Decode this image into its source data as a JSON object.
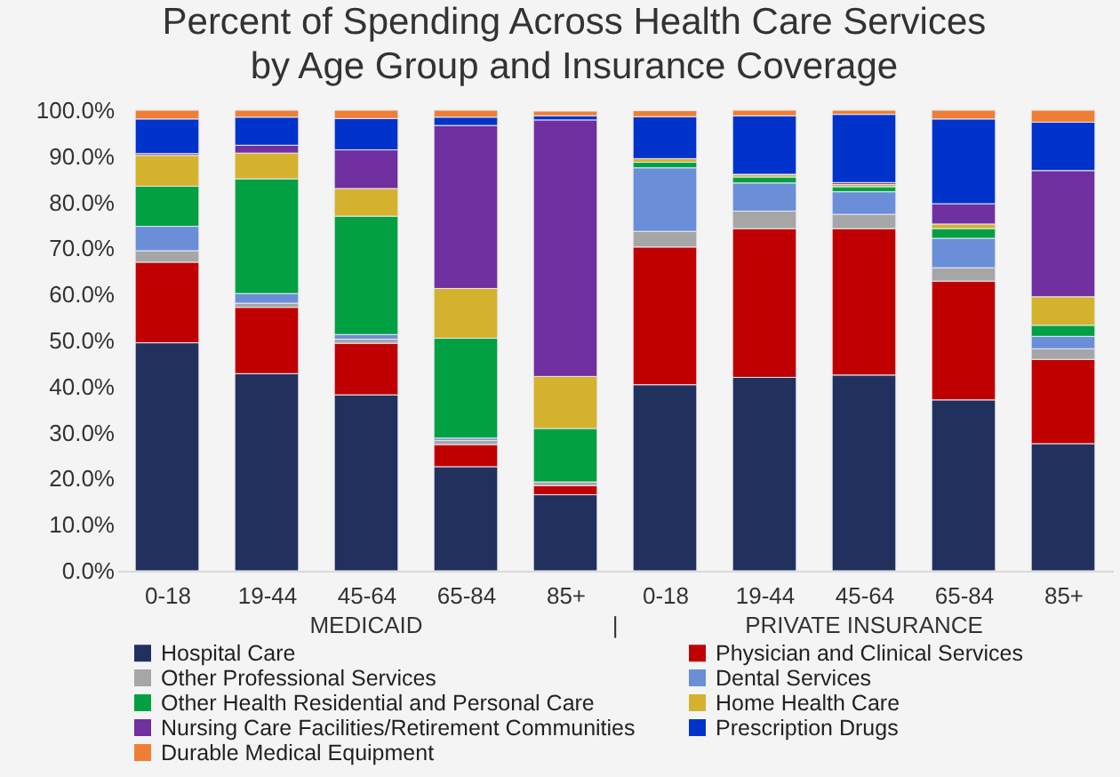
{
  "chart_data": {
    "type": "bar",
    "stacked": true,
    "title": "Percent of Spending Across Health Care Services\nby Age Group and Insurance Coverage",
    "categories": [
      "0-18",
      "19-44",
      "45-64",
      "65-84",
      "85+",
      "0-18",
      "19-44",
      "45-64",
      "65-84",
      "85+"
    ],
    "series": [
      {
        "name": "Hospital Care",
        "color": "#22305e",
        "values": [
          49.5,
          42.8,
          38.2,
          22.6,
          16.5,
          40.4,
          42.0,
          42.5,
          37.1,
          27.6
        ]
      },
      {
        "name": "Physician and Clinical Services",
        "color": "#c00000",
        "values": [
          17.5,
          14.4,
          11.2,
          4.8,
          2.0,
          29.9,
          32.3,
          31.8,
          25.8,
          18.3
        ]
      },
      {
        "name": "Other Professional Services",
        "color": "#a6a6a6",
        "values": [
          2.5,
          0.9,
          0.9,
          0.9,
          0.8,
          3.4,
          3.8,
          3.1,
          2.9,
          2.3
        ]
      },
      {
        "name": "Dental Services",
        "color": "#6a8fd8",
        "values": [
          5.3,
          2.1,
          1.0,
          0.5,
          null,
          13.8,
          6.1,
          4.9,
          6.4,
          2.7
        ]
      },
      {
        "name": "Other Health Residential and Personal Care",
        "color": "#00a043",
        "values": [
          8.7,
          24.9,
          25.7,
          21.7,
          11.6,
          1.2,
          1.3,
          1.1,
          2.1,
          2.4
        ]
      },
      {
        "name": "Home Health Care",
        "color": "#d4b22e",
        "values": [
          6.7,
          5.6,
          6.0,
          10.8,
          11.3,
          0.8,
          0.5,
          0.5,
          1.0,
          6.2
        ]
      },
      {
        "name": "Nursing Care Facilities/Retirement Communities",
        "color": "#7030a0",
        "values": [
          0.4,
          1.7,
          8.4,
          35.4,
          55.7,
          null,
          0.1,
          0.4,
          4.4,
          27.4
        ]
      },
      {
        "name": "Prescription Drugs",
        "color": "#0033cc",
        "values": [
          7.5,
          6.1,
          6.8,
          1.8,
          0.9,
          9.1,
          12.7,
          14.8,
          18.4,
          10.5
        ]
      },
      {
        "name": "Durable Medical Equipment",
        "color": "#ef7f35",
        "values": [
          1.9,
          1.5,
          1.8,
          1.5,
          1.0,
          1.3,
          1.2,
          0.9,
          1.9,
          2.6
        ]
      }
    ],
    "ylim": [
      0,
      100
    ],
    "yticks": [
      {
        "value": 0,
        "label": "0.0%"
      },
      {
        "value": 10,
        "label": "10.0%"
      },
      {
        "value": 20,
        "label": "20.0%"
      },
      {
        "value": 30,
        "label": "30.0%"
      },
      {
        "value": 40,
        "label": "40.0%"
      },
      {
        "value": 50,
        "label": "50.0%"
      },
      {
        "value": 60,
        "label": "60.0%"
      },
      {
        "value": 70,
        "label": "70.0%"
      },
      {
        "value": 80,
        "label": "80.0%"
      },
      {
        "value": 90,
        "label": "90.0%"
      },
      {
        "value": 100,
        "label": "100.0%"
      }
    ],
    "annotations": [
      "MEDICAID",
      "|",
      "PRIVATE INSURANCE"
    ],
    "grid": false,
    "legend": "bottom"
  }
}
